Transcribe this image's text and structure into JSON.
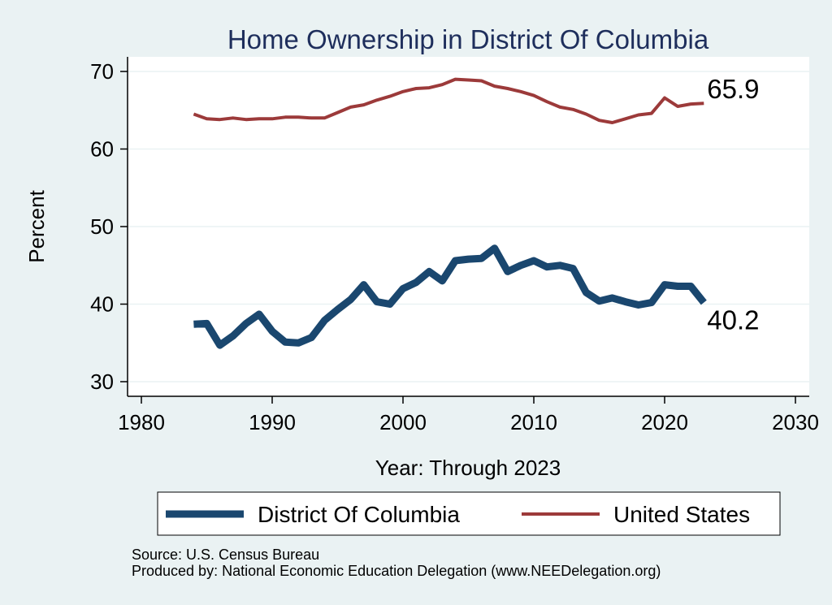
{
  "chart_data": {
    "type": "line",
    "title": "Home Ownership in District Of Columbia",
    "xlabel": "Year: Through 2023",
    "ylabel": "Percent",
    "xlim": [
      1980,
      2030
    ],
    "ylim": [
      30,
      70
    ],
    "xticks": [
      "1980",
      "1990",
      "2000",
      "2010",
      "2020",
      "2030"
    ],
    "yticks": [
      "30",
      "40",
      "50",
      "60",
      "70"
    ],
    "grid": "horizontal",
    "legend_position": "bottom",
    "x": [
      1984,
      1985,
      1986,
      1987,
      1988,
      1989,
      1990,
      1991,
      1992,
      1993,
      1994,
      1995,
      1996,
      1997,
      1998,
      1999,
      2000,
      2001,
      2002,
      2003,
      2004,
      2005,
      2006,
      2007,
      2008,
      2009,
      2010,
      2011,
      2012,
      2013,
      2014,
      2015,
      2016,
      2017,
      2018,
      2019,
      2020,
      2021,
      2022,
      2023
    ],
    "series": [
      {
        "name": "District Of Columbia",
        "color": "#1a476f",
        "end_label": "40.2",
        "values": [
          37.4,
          37.5,
          34.7,
          35.9,
          37.5,
          38.7,
          36.5,
          35.1,
          35.0,
          35.7,
          37.9,
          39.3,
          40.6,
          42.5,
          40.3,
          40.0,
          42.0,
          42.8,
          44.2,
          43.0,
          45.6,
          45.8,
          45.9,
          47.2,
          44.2,
          45.0,
          45.6,
          44.8,
          45.0,
          44.6,
          41.5,
          40.4,
          40.8,
          40.3,
          39.9,
          40.2,
          42.5,
          42.3,
          42.3,
          40.2
        ]
      },
      {
        "name": "United States",
        "color": "#9c3a3a",
        "end_label": "65.9",
        "values": [
          64.5,
          63.9,
          63.8,
          64.0,
          63.8,
          63.9,
          63.9,
          64.1,
          64.1,
          64.0,
          64.0,
          64.7,
          65.4,
          65.7,
          66.3,
          66.8,
          67.4,
          67.8,
          67.9,
          68.3,
          69.0,
          68.9,
          68.8,
          68.1,
          67.8,
          67.4,
          66.9,
          66.1,
          65.4,
          65.1,
          64.5,
          63.7,
          63.4,
          63.9,
          64.4,
          64.6,
          66.6,
          65.5,
          65.8,
          65.9
        ]
      }
    ]
  },
  "footer": {
    "source": "Source: U.S. Census Bureau",
    "produced_by": "Produced by: National Economic Education Delegation (www.NEEDelegation.org)"
  }
}
